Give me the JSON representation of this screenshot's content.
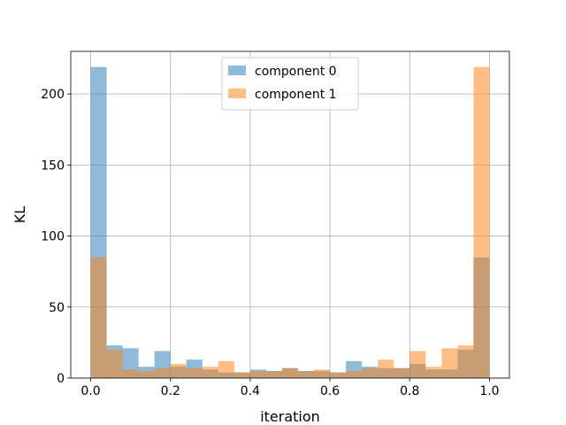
{
  "chart_data": {
    "type": "bar",
    "subtype": "overlaid-histogram",
    "title": "",
    "xlabel": "iteration",
    "ylabel": "KL",
    "xlim": [
      -0.05,
      1.05
    ],
    "ylim": [
      0,
      230
    ],
    "grid": true,
    "legend_position": "top-center",
    "bin_edges": [
      0.0,
      0.04,
      0.08,
      0.12,
      0.16,
      0.2,
      0.24,
      0.28,
      0.32,
      0.36,
      0.4,
      0.44,
      0.48,
      0.52,
      0.56,
      0.6,
      0.64,
      0.68,
      0.72,
      0.76,
      0.8,
      0.84,
      0.88,
      0.92,
      0.96,
      1.0
    ],
    "x_ticks": [
      {
        "value": 0.0,
        "label": "0.0"
      },
      {
        "value": 0.2,
        "label": "0.2"
      },
      {
        "value": 0.4,
        "label": "0.4"
      },
      {
        "value": 0.6,
        "label": "0.6"
      },
      {
        "value": 0.8,
        "label": "0.8"
      },
      {
        "value": 1.0,
        "label": "1.0"
      }
    ],
    "y_ticks": [
      {
        "value": 0,
        "label": "0"
      },
      {
        "value": 50,
        "label": "50"
      },
      {
        "value": 100,
        "label": "100"
      },
      {
        "value": 150,
        "label": "150"
      },
      {
        "value": 200,
        "label": "200"
      }
    ],
    "series": [
      {
        "name": "component 0",
        "color": "#1f77b4",
        "opacity": 0.5,
        "values": [
          219,
          23,
          21,
          8,
          19,
          8,
          13,
          6,
          4,
          4,
          6,
          5,
          7,
          5,
          5,
          4,
          12,
          8,
          7,
          7,
          10,
          6,
          6,
          20,
          85
        ]
      },
      {
        "name": "component 1",
        "color": "#ff7f0e",
        "opacity": 0.5,
        "values": [
          85,
          20,
          6,
          5,
          7,
          10,
          7,
          8,
          12,
          4,
          5,
          5,
          7,
          5,
          6,
          4,
          5,
          7,
          13,
          7,
          19,
          8,
          21,
          23,
          219
        ]
      }
    ]
  }
}
